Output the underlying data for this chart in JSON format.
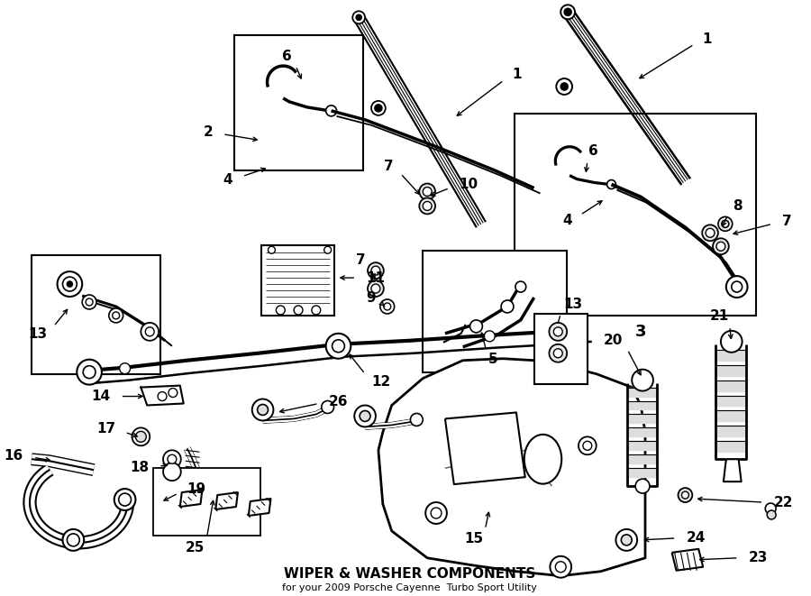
{
  "title": "WIPER & WASHER COMPONENTS",
  "subtitle": "for your 2009 Porsche Cayenne  Turbo Sport Utility",
  "bg_color": "#ffffff",
  "line_color": "#1a1a1a",
  "text_color": "#000000",
  "fig_width": 9.0,
  "fig_height": 6.61,
  "dpi": 100,
  "border_lw": 1.4,
  "main_lw": 1.8,
  "thin_lw": 1.0,
  "label_fontsize": 11,
  "title_fontsize": 11,
  "subtitle_fontsize": 8
}
